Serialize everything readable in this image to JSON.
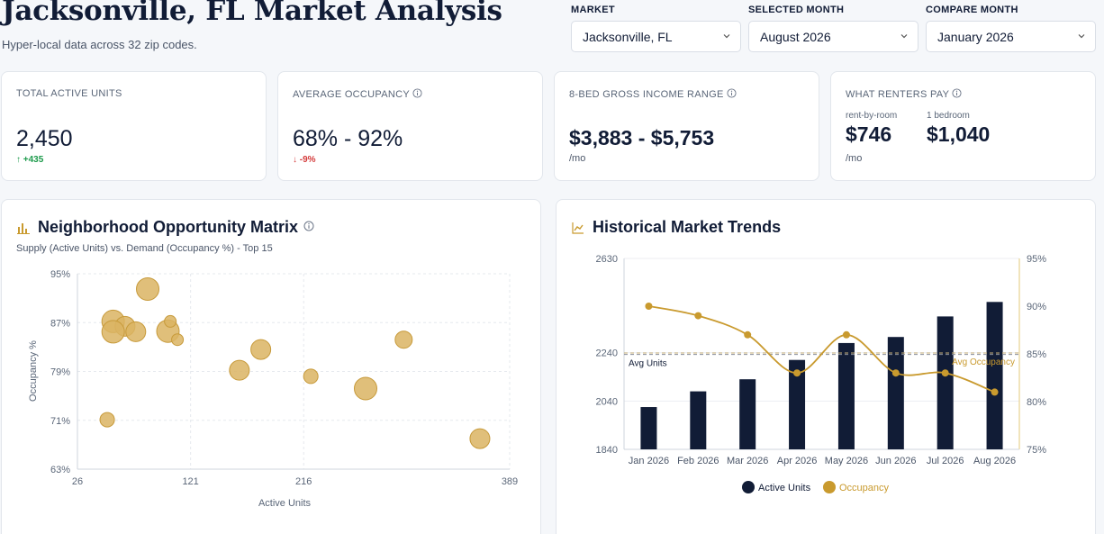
{
  "header": {
    "title": "Jacksonville, FL Market Analysis",
    "subtitle": "Hyper-local data across 32 zip codes."
  },
  "controls": {
    "market_label": "MARKET",
    "market_value": "Jacksonville, FL",
    "selected_label": "SELECTED MONTH",
    "selected_value": "August 2026",
    "compare_label": "COMPARE MONTH",
    "compare_value": "January 2026"
  },
  "kpis": {
    "units_label": "TOTAL ACTIVE UNITS",
    "units_value": "2,450",
    "units_delta": "+435",
    "occupancy_label": "AVERAGE OCCUPANCY",
    "occupancy_value": "68% - 92%",
    "occupancy_delta": "-9%",
    "income_label": "8-BED GROSS INCOME RANGE",
    "income_value": "$3,883 - $5,753",
    "income_unit": "/mo",
    "renters_label": "WHAT RENTERS PAY",
    "renters_room_label": "rent-by-room",
    "renters_room_value": "$746",
    "renters_bed_label": "1 bedroom",
    "renters_bed_value": "$1,040",
    "renters_unit": "/mo"
  },
  "matrix_panel": {
    "title": "Neighborhood Opportunity Matrix",
    "subtitle": "Supply (Active Units) vs. Demand (Occupancy %) - Top 15"
  },
  "trends_panel": {
    "title": "Historical Market Trends"
  },
  "colors": {
    "navy": "#111c36",
    "gold": "#c99a2e",
    "bubble_fill": "#dbb463",
    "bubble_stroke": "#c79a3a",
    "green": "#1c9a4b",
    "red": "#d43b3b"
  },
  "chart_data": [
    {
      "type": "scatter",
      "title": "Neighborhood Opportunity Matrix",
      "xlabel": "Active Units",
      "ylabel": "Occupancy %",
      "xlim": [
        26,
        389
      ],
      "ylim": [
        63,
        95
      ],
      "x_ticks": [
        "26",
        "121",
        "216",
        "389"
      ],
      "x_tick_values": [
        26,
        121,
        216,
        389
      ],
      "y_ticks": [
        "95%",
        "87%",
        "79%",
        "71%",
        "63%"
      ],
      "y_tick_values": [
        95,
        87,
        79,
        71,
        63
      ],
      "grid": true,
      "points": [
        {
          "x": 85,
          "y": 92.5,
          "size": 3
        },
        {
          "x": 56,
          "y": 87.2,
          "size": 3
        },
        {
          "x": 66,
          "y": 86.4,
          "size": 2.5
        },
        {
          "x": 56,
          "y": 85.5,
          "size": 3
        },
        {
          "x": 75,
          "y": 85.5,
          "size": 2.5
        },
        {
          "x": 102,
          "y": 85.6,
          "size": 3
        },
        {
          "x": 104,
          "y": 87.2,
          "size": 1
        },
        {
          "x": 110,
          "y": 84.2,
          "size": 1
        },
        {
          "x": 180,
          "y": 82.6,
          "size": 2.5
        },
        {
          "x": 162,
          "y": 79.2,
          "size": 2.5
        },
        {
          "x": 222,
          "y": 78.2,
          "size": 1.5
        },
        {
          "x": 268,
          "y": 76.2,
          "size": 3
        },
        {
          "x": 300,
          "y": 84.2,
          "size": 2
        },
        {
          "x": 51,
          "y": 71.1,
          "size": 1.5
        },
        {
          "x": 364,
          "y": 68.0,
          "size": 2.5
        }
      ]
    },
    {
      "type": "bar",
      "title": "Historical Market Trends",
      "categories": [
        "Jan 2026",
        "Feb 2026",
        "Mar 2026",
        "Apr 2026",
        "May 2026",
        "Jun 2026",
        "Jul 2026",
        "Aug 2026"
      ],
      "series": [
        {
          "name": "Active Units",
          "type": "bar",
          "axis": "left",
          "color": "#111c36",
          "values": [
            2015,
            2080,
            2130,
            2210,
            2280,
            2305,
            2390,
            2450
          ]
        },
        {
          "name": "Occupancy",
          "type": "line",
          "axis": "right",
          "color": "#c99a2e",
          "values": [
            90,
            89,
            87,
            83,
            87,
            83,
            83,
            81
          ]
        }
      ],
      "y_left_ticks": [
        "2630",
        "2240",
        "2040",
        "1840"
      ],
      "y_left_tick_values": [
        2630,
        2240,
        2040,
        1840
      ],
      "y_right_ticks": [
        "95%",
        "90%",
        "85%",
        "80%",
        "75%"
      ],
      "y_right_tick_values": [
        95,
        90,
        85,
        80,
        75
      ],
      "ylim_left": [
        1840,
        2630
      ],
      "ylim_right": [
        75,
        95
      ],
      "reference_lines": [
        {
          "label": "Avg Units",
          "axis": "left",
          "value": 2240,
          "color": "#111c36"
        },
        {
          "label": "Avg Occupancy",
          "axis": "right",
          "value": 85,
          "color": "#c99a2e"
        }
      ],
      "legend": "bottom"
    }
  ]
}
